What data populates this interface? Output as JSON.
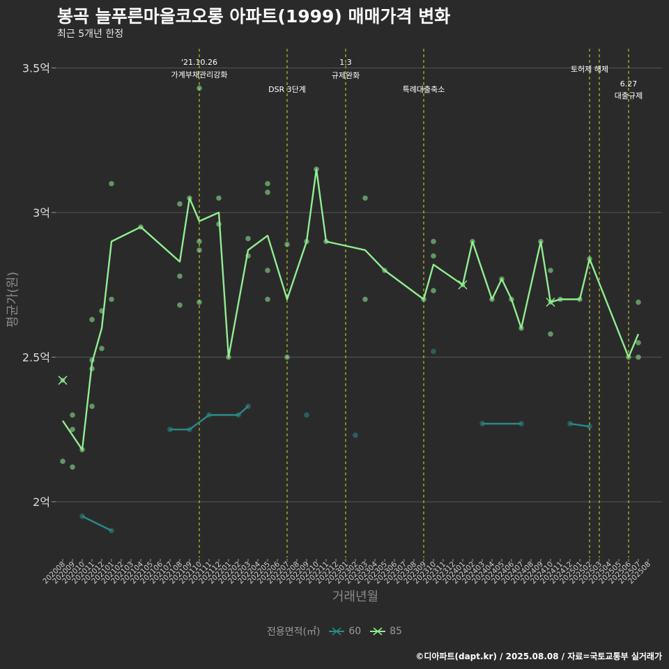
{
  "title": "봉곡 늘푸른마을코오롱 아파트(1999) 매매가격 변화",
  "subtitle": "최근 5개년 한정",
  "caption": "©디아파트(dapt.kr) / 2025.08.08 / 자료=국토교통부 실거래가",
  "colors": {
    "background": "#2b2a2b",
    "grid": "#555555",
    "s60": "#2a8a8a",
    "s85": "#90ee90",
    "event": "#d4e61e"
  },
  "legend": {
    "title": "전용면적(㎡)",
    "items": [
      {
        "label": "60",
        "color": "#2a8a8a"
      },
      {
        "label": "85",
        "color": "#90ee90"
      }
    ]
  },
  "chart_data": {
    "type": "line",
    "xlabel": "거래년월",
    "ylabel": "평균가(원)",
    "ylim": [
      1.8,
      3.55
    ],
    "yticks": [
      {
        "v": 2.0,
        "label": "2억"
      },
      {
        "v": 2.5,
        "label": "2.5억"
      },
      {
        "v": 3.0,
        "label": "3억"
      },
      {
        "v": 3.5,
        "label": "3.5억"
      }
    ],
    "categories": [
      "202008",
      "202009",
      "202010",
      "202011",
      "202012",
      "202101",
      "202102",
      "202103",
      "202104",
      "202105",
      "202106",
      "202107",
      "202108",
      "202109",
      "202110",
      "202111",
      "202112",
      "202201",
      "202202",
      "202203",
      "202204",
      "202205",
      "202206",
      "202207",
      "202208",
      "202209",
      "202210",
      "202211",
      "202212",
      "202301",
      "202302",
      "202303",
      "202304",
      "202305",
      "202306",
      "202307",
      "202308",
      "202309",
      "202310",
      "202311",
      "202312",
      "202401",
      "202402",
      "202403",
      "202404",
      "202405",
      "202406",
      "202407",
      "202408",
      "202409",
      "202410",
      "202411",
      "202412",
      "202501",
      "202502",
      "202503",
      "202504",
      "202505",
      "202506",
      "202507",
      "202508"
    ],
    "series": [
      {
        "name": "60",
        "color": "#2a8a8a",
        "line_segments": [
          [
            [
              "202010",
              1.95
            ],
            [
              "202101",
              1.9
            ]
          ],
          [
            [
              "202107",
              2.25
            ],
            [
              "202109",
              2.25
            ],
            [
              "202111",
              2.3
            ],
            [
              "202202",
              2.3
            ],
            [
              "202203",
              2.33
            ]
          ],
          [
            [
              "202403",
              2.27
            ],
            [
              "202407",
              2.27
            ]
          ],
          [
            [
              "202412",
              2.27
            ],
            [
              "202502",
              2.26
            ]
          ]
        ],
        "points": [
          [
            "202010",
            1.95
          ],
          [
            "202101",
            1.9
          ],
          [
            "202107",
            2.25
          ],
          [
            "202109",
            2.25
          ],
          [
            "202111",
            2.3
          ],
          [
            "202202",
            2.3
          ],
          [
            "202203",
            2.33
          ],
          [
            "202209",
            2.3
          ],
          [
            "202302",
            2.23
          ],
          [
            "202310",
            2.52
          ],
          [
            "202403",
            2.27
          ],
          [
            "202407",
            2.27
          ],
          [
            "202412",
            2.27
          ],
          [
            "202502",
            2.26
          ]
        ]
      },
      {
        "name": "85",
        "color": "#90ee90",
        "line": [
          [
            "202008",
            2.28
          ],
          [
            "202009",
            2.23
          ],
          [
            "202010",
            2.18
          ],
          [
            "202011",
            2.48
          ],
          [
            "202012",
            2.6
          ],
          [
            "202101",
            2.9
          ],
          [
            "202104",
            2.95
          ],
          [
            "202108",
            2.83
          ],
          [
            "202109",
            3.05
          ],
          [
            "202110",
            2.97
          ],
          [
            "202112",
            3.0
          ],
          [
            "202201",
            2.5
          ],
          [
            "202203",
            2.87
          ],
          [
            "202205",
            2.92
          ],
          [
            "202207",
            2.7
          ],
          [
            "202209",
            2.9
          ],
          [
            "202210",
            3.15
          ],
          [
            "202211",
            2.9
          ],
          [
            "202303",
            2.87
          ],
          [
            "202305",
            2.8
          ],
          [
            "202309",
            2.7
          ],
          [
            "202310",
            2.82
          ],
          [
            "202401",
            2.75
          ],
          [
            "202402",
            2.9
          ],
          [
            "202404",
            2.7
          ],
          [
            "202405",
            2.77
          ],
          [
            "202406",
            2.7
          ],
          [
            "202407",
            2.6
          ],
          [
            "202409",
            2.9
          ],
          [
            "202410",
            2.69
          ],
          [
            "202411",
            2.7
          ],
          [
            "202501",
            2.7
          ],
          [
            "202502",
            2.84
          ],
          [
            "202506",
            2.5
          ],
          [
            "202507",
            2.58
          ]
        ],
        "points": [
          [
            "202008",
            2.14
          ],
          [
            "202009",
            2.3
          ],
          [
            "202009",
            2.25
          ],
          [
            "202009",
            2.12
          ],
          [
            "202010",
            2.18
          ],
          [
            "202011",
            2.63
          ],
          [
            "202011",
            2.49
          ],
          [
            "202011",
            2.46
          ],
          [
            "202011",
            2.33
          ],
          [
            "202012",
            2.66
          ],
          [
            "202012",
            2.53
          ],
          [
            "202101",
            3.1
          ],
          [
            "202101",
            2.7
          ],
          [
            "202104",
            2.95
          ],
          [
            "202108",
            3.03
          ],
          [
            "202108",
            2.78
          ],
          [
            "202108",
            2.68
          ],
          [
            "202109",
            3.05
          ],
          [
            "202110",
            3.43
          ],
          [
            "202110",
            2.9
          ],
          [
            "202110",
            2.87
          ],
          [
            "202110",
            2.69
          ],
          [
            "202112",
            3.05
          ],
          [
            "202112",
            2.96
          ],
          [
            "202201",
            2.5
          ],
          [
            "202203",
            2.91
          ],
          [
            "202203",
            2.85
          ],
          [
            "202205",
            3.1
          ],
          [
            "202205",
            3.07
          ],
          [
            "202205",
            2.8
          ],
          [
            "202205",
            2.7
          ],
          [
            "202207",
            2.89
          ],
          [
            "202207",
            2.5
          ],
          [
            "202209",
            2.9
          ],
          [
            "202210",
            3.15
          ],
          [
            "202211",
            2.9
          ],
          [
            "202303",
            3.05
          ],
          [
            "202303",
            2.7
          ],
          [
            "202305",
            2.8
          ],
          [
            "202309",
            2.7
          ],
          [
            "202310",
            2.9
          ],
          [
            "202310",
            2.85
          ],
          [
            "202310",
            2.73
          ],
          [
            "202402",
            2.9
          ],
          [
            "202404",
            2.7
          ],
          [
            "202405",
            2.77
          ],
          [
            "202406",
            2.7
          ],
          [
            "202407",
            2.6
          ],
          [
            "202409",
            2.9
          ],
          [
            "202410",
            2.8
          ],
          [
            "202410",
            2.58
          ],
          [
            "202411",
            2.7
          ],
          [
            "202501",
            2.7
          ],
          [
            "202502",
            2.84
          ],
          [
            "202506",
            2.5
          ],
          [
            "202507",
            2.69
          ],
          [
            "202507",
            2.55
          ],
          [
            "202507",
            2.5
          ]
        ],
        "cross_markers": [
          [
            "202008",
            2.42
          ],
          [
            "202401",
            2.75
          ],
          [
            "202410",
            2.69
          ]
        ]
      }
    ],
    "events": [
      {
        "x": "202110",
        "lines": [
          "'21.10.26",
          "가계부채관리강화"
        ]
      },
      {
        "x": "202207",
        "lines": [
          "DSR 3단계"
        ]
      },
      {
        "x": "202301",
        "lines": [
          "1.3",
          "규제완화"
        ]
      },
      {
        "x": "202309",
        "lines": [
          "특례대출축소"
        ]
      },
      {
        "x": "202502",
        "lines": [
          "토허제 해제"
        ]
      },
      {
        "x": "202503",
        "lines": []
      },
      {
        "x": "202506",
        "lines": [
          "6.27",
          "대출규제"
        ]
      }
    ]
  }
}
